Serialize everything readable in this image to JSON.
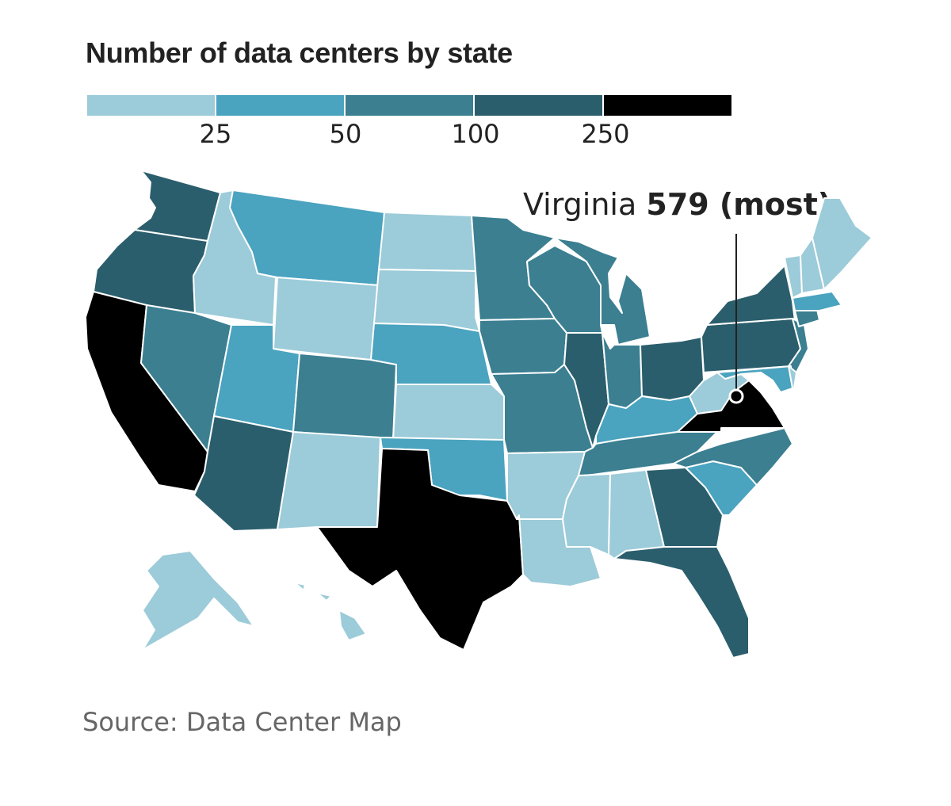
{
  "title": "Number of data centers by state",
  "legend": {
    "bins": [
      {
        "color": "#9ccbd9",
        "range": "under 25"
      },
      {
        "color": "#4aa3bf",
        "range": "25-50"
      },
      {
        "color": "#3b7f91",
        "range": "50-100"
      },
      {
        "color": "#2b5e6c",
        "range": "100-250"
      },
      {
        "color": "#000000",
        "range": "over 250"
      }
    ],
    "ticks": [
      "25",
      "50",
      "100",
      "250"
    ]
  },
  "annotation": {
    "state": "Virginia",
    "value": "579 (most)"
  },
  "source": "Source: Data Center Map",
  "colors": {
    "c1": "#9ccbd9",
    "c2": "#4aa3bf",
    "c3": "#3b7f91",
    "c4": "#2b5e6c",
    "c5": "#000000",
    "text": "#222222",
    "muted": "#666666"
  }
}
